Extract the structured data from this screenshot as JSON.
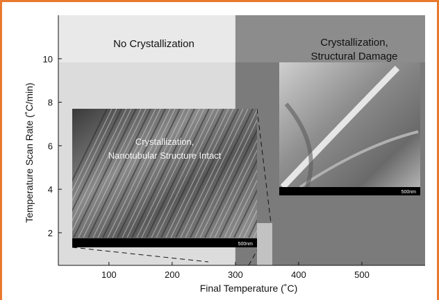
{
  "chart_data": {
    "type": "scatter",
    "xlabel": "Final Temperature (˚C)",
    "ylabel": "Temperature Scan Rate (˚C/min)",
    "xlim": [
      20,
      600
    ],
    "ylim": [
      0.5,
      12
    ],
    "xticks": [
      100,
      200,
      300,
      400,
      500
    ],
    "yticks": [
      2,
      4,
      6,
      8,
      10
    ],
    "grid": false,
    "regions": [
      {
        "label": "No Crystallization",
        "x_range": [
          20,
          300
        ],
        "y_range": [
          0.5,
          12
        ],
        "color": "#e9e9e9"
      },
      {
        "label": "Crystallization, Structural Damage",
        "x_range": [
          300,
          600
        ],
        "y_range": [
          0.5,
          12
        ],
        "color": "#8c8c8c"
      }
    ],
    "boundary_x": 300,
    "region_labels": {
      "left": "No Crystallization",
      "right_line1": "Crystallization,",
      "right_line2": "Structural Damage"
    },
    "insets": [
      {
        "label_line1": "Crystallization,",
        "label_line2": "Nanotubular Structure Intact",
        "scale_label": "500nm"
      },
      {
        "label_line1": "",
        "label_line2": "",
        "scale_label": "500nm"
      }
    ]
  }
}
